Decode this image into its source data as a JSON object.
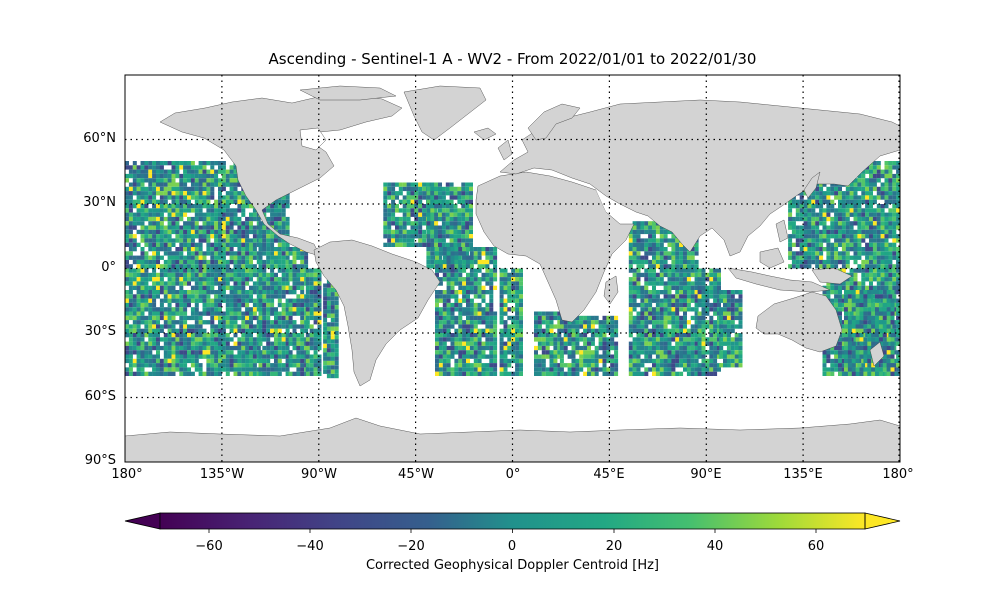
{
  "title": "Ascending - Sentinel-1 A - WV2 - From 2022/01/01 to 2022/01/30",
  "latitude_labels": [
    "60°N",
    "30°N",
    "0°",
    "30°S",
    "60°S",
    "90°S"
  ],
  "longitude_labels": [
    "180°",
    "135°W",
    "90°W",
    "45°W",
    "0°",
    "45°E",
    "90°E",
    "135°E",
    "180°"
  ],
  "colorbar": {
    "label": "Corrected Geophysical Doppler Centroid [Hz]",
    "tick_labels": [
      "−60",
      "−40",
      "−20",
      "0",
      "20",
      "40",
      "60"
    ],
    "colormap": "viridis",
    "range": [
      -75,
      75
    ],
    "extend": "both"
  },
  "map": {
    "projection": "PlateCarree",
    "extent": [
      -180,
      180,
      -90,
      90
    ],
    "land_color": "#d3d3d3",
    "gridlines": "dotted",
    "data_lat_range": [
      -50,
      50
    ]
  },
  "colors": {
    "axis_frame": "#000000",
    "viridis_low": "#440154",
    "viridis_mid": "#21918c",
    "viridis_high": "#fde725"
  }
}
